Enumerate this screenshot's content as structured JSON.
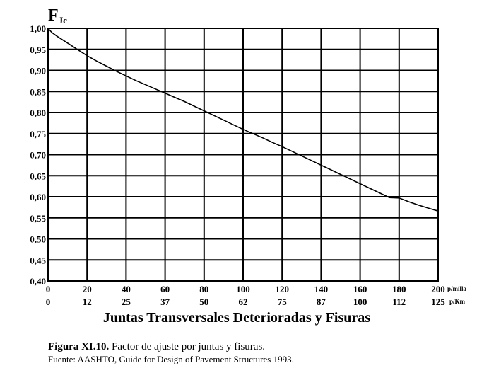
{
  "chart_data": {
    "type": "line",
    "y_symbol": "F",
    "y_symbol_sub": "Jc",
    "xlabel": "Juntas Transversales Deterioradas y Fisuras",
    "x_primary_unit": "p/milla",
    "x_secondary_unit": "p/Km",
    "xlim": [
      0,
      200
    ],
    "ylim": [
      0.4,
      1.0
    ],
    "grid": true,
    "x_ticks": [
      0,
      20,
      40,
      60,
      80,
      100,
      120,
      140,
      160,
      180,
      200
    ],
    "x_ticks_km": [
      "0",
      "12",
      "25",
      "37",
      "50",
      "62",
      "75",
      "87",
      "100",
      "112",
      "125"
    ],
    "y_ticks": [
      "1,00",
      "0,95",
      "0,90",
      "0,85",
      "0,80",
      "0,75",
      "0,70",
      "0,65",
      "0,60",
      "0,55",
      "0,50",
      "0,45",
      "0,40"
    ],
    "series": [
      {
        "x": [
          0,
          2,
          5,
          10,
          15,
          20,
          25,
          30,
          35,
          40,
          45,
          50,
          55,
          60,
          65,
          70,
          75,
          80,
          85,
          90,
          95,
          100,
          105,
          110,
          115,
          120,
          125,
          130,
          135,
          140,
          145,
          150,
          155,
          160,
          165,
          170,
          175,
          180,
          185,
          190,
          195,
          200
        ],
        "y": [
          1.0,
          0.99,
          0.98,
          0.965,
          0.95,
          0.935,
          0.922,
          0.91,
          0.898,
          0.887,
          0.876,
          0.866,
          0.856,
          0.846,
          0.836,
          0.826,
          0.815,
          0.804,
          0.793,
          0.782,
          0.771,
          0.76,
          0.75,
          0.74,
          0.729,
          0.719,
          0.708,
          0.697,
          0.686,
          0.675,
          0.664,
          0.653,
          0.642,
          0.631,
          0.62,
          0.609,
          0.598,
          0.597,
          0.588,
          0.58,
          0.573,
          0.566
        ]
      }
    ]
  },
  "caption": {
    "figure_label": "Figura XI.10.",
    "figure_text": " Factor de ajuste por juntas y fisuras.",
    "source": "Fuente: AASHTO, Guide for Design of Pavement Structures 1993."
  }
}
